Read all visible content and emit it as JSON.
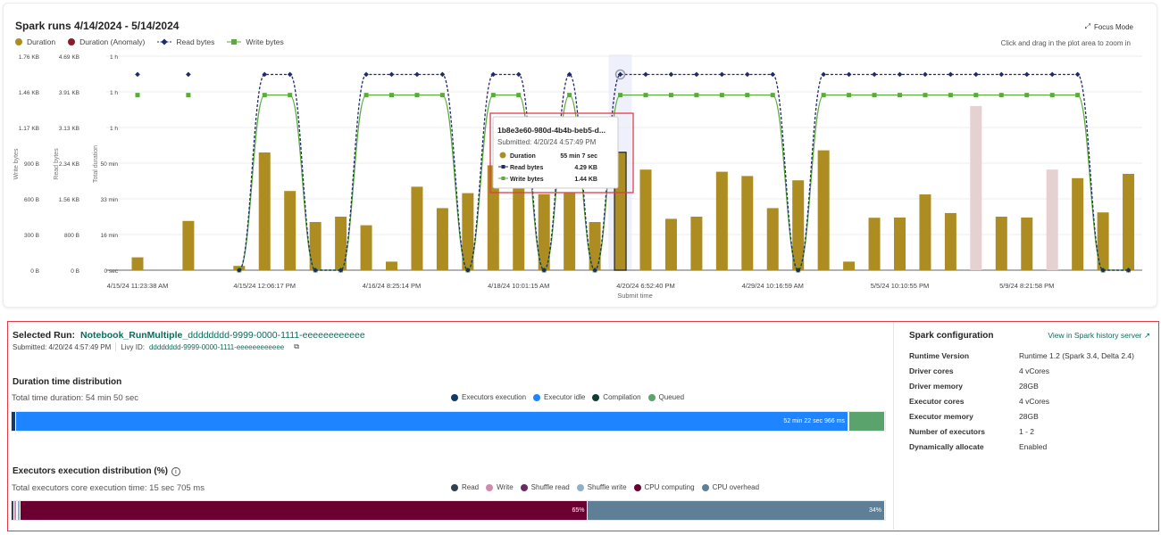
{
  "header": {
    "title": "Spark runs 4/14/2024 - 5/14/2024",
    "focus_mode": "Focus Mode",
    "zoom_hint": "Click and drag in the plot area to zoom in"
  },
  "legend": [
    {
      "label": "Duration",
      "color": "#ad8d22",
      "marker": "dot"
    },
    {
      "label": "Duration (Anomaly)",
      "color": "#8b1a2b",
      "marker": "dot"
    },
    {
      "label": "Read bytes",
      "color": "#1f2a6b",
      "marker": "diamond-line"
    },
    {
      "label": "Write bytes",
      "color": "#5aab3c",
      "marker": "square-line"
    }
  ],
  "chart_data": {
    "type": "bar+line",
    "xlabel": "Submit time",
    "x_tick_labels": [
      "4/15/24 11:23:38 AM",
      "4/15/24 12:06:17 PM",
      "4/16/24 8:25:14 PM",
      "4/18/24 10:01:15 AM",
      "4/20/24 6:52:40 PM",
      "4/29/24 10:16:59 AM",
      "5/5/24 10:10:55 PM",
      "5/9/24 8:21:58 PM"
    ],
    "x_tick_every": 5,
    "y_axes": [
      {
        "label": "Write bytes",
        "ticks": [
          "0 B",
          "300 B",
          "600 B",
          "900 B",
          "1.17 KB",
          "1.46 KB",
          "1.76 KB"
        ],
        "range_kb": [
          0,
          1.76
        ]
      },
      {
        "label": "Read bytes",
        "ticks": [
          "0 B",
          "800 B",
          "1.56 KB",
          "2.34 KB",
          "3.13 KB",
          "3.91 KB",
          "4.69 KB"
        ],
        "range_kb": [
          0,
          4.69
        ]
      },
      {
        "label": "Total duration",
        "ticks": [
          "0 sec",
          "16 min",
          "33 min",
          "50 min",
          "1 h",
          "1 h",
          "1 h"
        ],
        "range_min": [
          0,
          100
        ]
      }
    ],
    "grid": true,
    "duration_min": [
      6,
      null,
      23,
      null,
      2,
      55,
      37,
      22.5,
      25,
      21,
      4,
      39,
      29,
      36,
      49,
      45,
      35.5,
      36,
      22.5,
      55.1,
      47,
      24,
      25,
      46,
      44,
      29,
      42,
      56,
      4,
      24.5,
      24.6,
      35.4,
      26.7,
      76.7,
      25,
      24.6,
      47,
      43,
      27,
      45
    ],
    "anomaly_indices": [
      33,
      36
    ],
    "read_kb": [
      4.29,
      null,
      4.29,
      null,
      0,
      4.29,
      4.29,
      0,
      0,
      4.29,
      4.29,
      4.29,
      4.29,
      0,
      4.29,
      4.29,
      0,
      4.29,
      0,
      4.29,
      4.29,
      4.29,
      4.29,
      4.29,
      4.29,
      4.29,
      0,
      4.29,
      4.29,
      4.29,
      4.29,
      4.29,
      4.29,
      4.29,
      4.29,
      4.29,
      4.29,
      4.29,
      0,
      0
    ],
    "write_kb": [
      1.44,
      null,
      1.44,
      null,
      0,
      1.44,
      1.44,
      0,
      0,
      1.44,
      1.44,
      1.44,
      1.44,
      0,
      1.44,
      1.44,
      0,
      1.44,
      0,
      1.44,
      1.44,
      1.44,
      1.44,
      1.44,
      1.44,
      1.44,
      0,
      1.44,
      1.44,
      1.44,
      1.44,
      1.44,
      1.44,
      1.44,
      1.44,
      1.44,
      1.44,
      1.44,
      0,
      0
    ],
    "selected_index": 19,
    "colors": {
      "duration": "#ad8d22",
      "anomaly": "#e5d0d2",
      "read": "#1f2a6b",
      "write": "#5aab3c",
      "highlight": "#eef0fc"
    }
  },
  "tooltip": {
    "title": "1b8e3e60-980d-4b4b-beb5-d...",
    "submitted": "Submitted: 4/20/24 4:57:49 PM",
    "rows": [
      {
        "label": "Duration",
        "value": "55 min 7 sec"
      },
      {
        "label": "Read bytes",
        "value": "4.29 KB"
      },
      {
        "label": "Write bytes",
        "value": "1.44 KB"
      }
    ]
  },
  "selected_run": {
    "label": "Selected Run:",
    "name": "Notebook_RunMultiple_",
    "id": "dddddddd-9999-0000-1111-eeeeeeeeeeee",
    "submitted": "Submitted: 4/20/24 4:57:49 PM",
    "livy_label": "Livy ID:",
    "livy_id": "dddddddd-9999-0000-1111-eeeeeeeeeeee"
  },
  "duration_dist": {
    "title": "Duration time distribution",
    "total": "Total time duration: 54 min 50 sec",
    "legend": [
      {
        "label": "Executors execution",
        "color": "#133a6b"
      },
      {
        "label": "Executor idle",
        "color": "#1f84ff"
      },
      {
        "label": "Compilation",
        "color": "#0f3d33"
      },
      {
        "label": "Queued",
        "color": "#5aa36c"
      }
    ],
    "segments": [
      {
        "pct": 0.5,
        "color": "#133a6b",
        "label": ""
      },
      {
        "pct": 95.3,
        "color": "#1f84ff",
        "label": "52 min 22 sec 966 ms"
      },
      {
        "pct": 0.1,
        "color": "#0f3d33",
        "label": ""
      },
      {
        "pct": 4.1,
        "color": "#5aa36c",
        "label": ""
      }
    ]
  },
  "exec_dist": {
    "title": "Executors execution distribution (%)",
    "total": "Total executors core execution time: 15 sec 705 ms",
    "legend": [
      {
        "label": "Read",
        "color": "#2f4050"
      },
      {
        "label": "Write",
        "color": "#d08ab0"
      },
      {
        "label": "Shuffle read",
        "color": "#6a2c5e"
      },
      {
        "label": "Shuffle write",
        "color": "#8fb0c8"
      },
      {
        "label": "CPU computing",
        "color": "#6b0030"
      },
      {
        "label": "CPU overhead",
        "color": "#5e7f96"
      }
    ],
    "segments": [
      {
        "pct": 0.3,
        "color": "#2f4050",
        "label": ""
      },
      {
        "pct": 0.3,
        "color": "#d08ab0",
        "label": ""
      },
      {
        "pct": 0.1,
        "color": "#6a2c5e",
        "label": ""
      },
      {
        "pct": 0.3,
        "color": "#8fb0c8",
        "label": ""
      },
      {
        "pct": 65,
        "color": "#6b0030",
        "label": "65%"
      },
      {
        "pct": 34,
        "color": "#5e7f96",
        "label": "34%"
      }
    ]
  },
  "spark_config": {
    "title": "Spark configuration",
    "history_link": "View in Spark history server",
    "rows": [
      {
        "key": "Runtime Version",
        "value": "Runtime 1.2 (Spark 3.4, Delta 2.4)"
      },
      {
        "key": "Driver cores",
        "value": "4 vCores"
      },
      {
        "key": "Driver memory",
        "value": "28GB"
      },
      {
        "key": "Executor cores",
        "value": "4 vCores"
      },
      {
        "key": "Executor memory",
        "value": "28GB"
      },
      {
        "key": "Number of executors",
        "value": "1 - 2"
      },
      {
        "key": "Dynamically allocate",
        "value": "Enabled"
      }
    ]
  }
}
